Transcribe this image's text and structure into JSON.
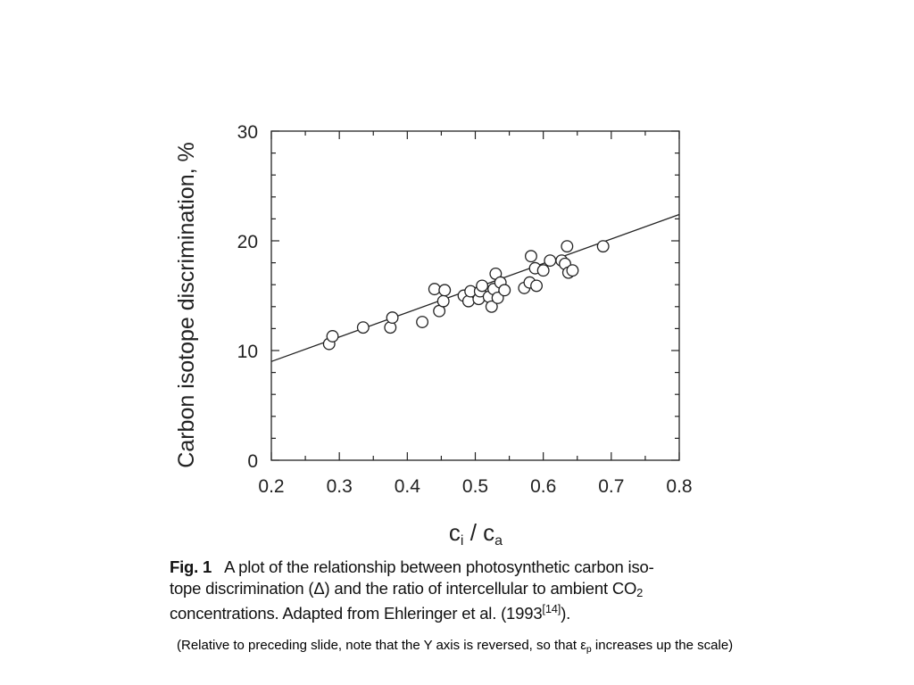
{
  "chart_data": {
    "type": "scatter",
    "xlabel_main": "c",
    "xlabel_sub_1": "i",
    "xlabel_sep": " / c",
    "xlabel_sub_2": "a",
    "ylabel": "Carbon isotope discrimination, %",
    "xlim": [
      0.2,
      0.8
    ],
    "ylim": [
      0,
      30
    ],
    "x_ticks": [
      "0.2",
      "0.3",
      "0.4",
      "0.5",
      "0.6",
      "0.7",
      "0.8"
    ],
    "y_ticks": [
      "0",
      "10",
      "20",
      "30"
    ],
    "x_tick_values": [
      0.2,
      0.3,
      0.4,
      0.5,
      0.6,
      0.7,
      0.8
    ],
    "y_tick_values": [
      0,
      10,
      20,
      30
    ],
    "grid": false,
    "marker": "open-circle",
    "points": [
      {
        "x": 0.285,
        "y": 10.6
      },
      {
        "x": 0.29,
        "y": 11.3
      },
      {
        "x": 0.335,
        "y": 12.1
      },
      {
        "x": 0.375,
        "y": 12.1
      },
      {
        "x": 0.378,
        "y": 13.0
      },
      {
        "x": 0.422,
        "y": 12.6
      },
      {
        "x": 0.44,
        "y": 15.6
      },
      {
        "x": 0.447,
        "y": 13.6
      },
      {
        "x": 0.453,
        "y": 14.5
      },
      {
        "x": 0.455,
        "y": 15.5
      },
      {
        "x": 0.483,
        "y": 15.0
      },
      {
        "x": 0.49,
        "y": 14.5
      },
      {
        "x": 0.493,
        "y": 15.4
      },
      {
        "x": 0.505,
        "y": 14.7
      },
      {
        "x": 0.507,
        "y": 15.4
      },
      {
        "x": 0.51,
        "y": 15.9
      },
      {
        "x": 0.52,
        "y": 14.9
      },
      {
        "x": 0.524,
        "y": 14.0
      },
      {
        "x": 0.527,
        "y": 15.6
      },
      {
        "x": 0.53,
        "y": 17.0
      },
      {
        "x": 0.533,
        "y": 14.8
      },
      {
        "x": 0.537,
        "y": 16.2
      },
      {
        "x": 0.543,
        "y": 15.5
      },
      {
        "x": 0.572,
        "y": 15.7
      },
      {
        "x": 0.58,
        "y": 16.2
      },
      {
        "x": 0.582,
        "y": 18.6
      },
      {
        "x": 0.588,
        "y": 17.5
      },
      {
        "x": 0.59,
        "y": 15.9
      },
      {
        "x": 0.6,
        "y": 17.3
      },
      {
        "x": 0.61,
        "y": 18.2
      },
      {
        "x": 0.627,
        "y": 18.2
      },
      {
        "x": 0.632,
        "y": 17.9
      },
      {
        "x": 0.635,
        "y": 19.5
      },
      {
        "x": 0.637,
        "y": 17.1
      },
      {
        "x": 0.643,
        "y": 17.3
      },
      {
        "x": 0.688,
        "y": 19.5
      }
    ],
    "fit_line": {
      "x": [
        0.2,
        0.8
      ],
      "y": [
        9.0,
        22.4
      ]
    }
  },
  "caption": {
    "fig_label": "Fig. 1",
    "line1": "A plot of the relationship between photosynthetic carbon iso-",
    "line2_before": "tope discrimination (Δ) and the ratio of intercellular to ambient CO",
    "line2_sub": "2",
    "line3_before": "concentrations. Adapted from Ehleringer et al. (1993",
    "line3_sup": "[14]",
    "line3_after": ")."
  },
  "note": {
    "before": "(Relative to preceding slide, note that the Y axis is reversed, so that ε",
    "sub": "p",
    "after": " increases up the scale)"
  }
}
